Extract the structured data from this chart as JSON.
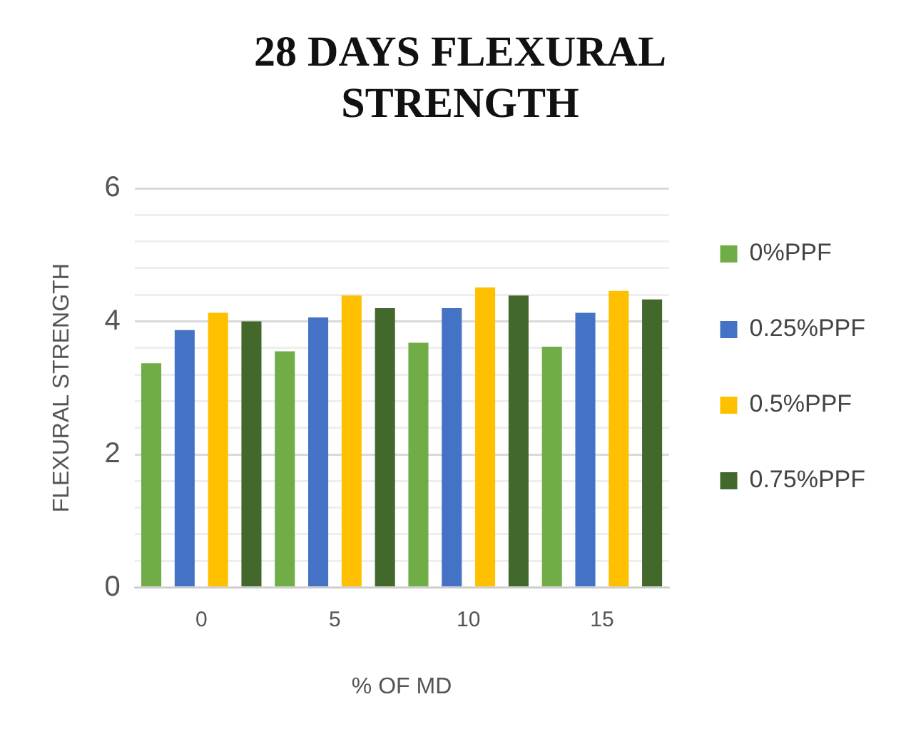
{
  "chart_data": {
    "type": "bar",
    "title": "28 DAYS FLEXURAL STRENGTH",
    "xlabel": "% OF MD",
    "ylabel": "FLEXURAL STRENGTH",
    "categories": [
      "0",
      "5",
      "10",
      "15"
    ],
    "series": [
      {
        "name": "0%PPF",
        "color": "#70ad47",
        "values": [
          3.37,
          3.55,
          3.68,
          3.62
        ]
      },
      {
        "name": "0.25%PPF",
        "color": "#4472c4",
        "values": [
          3.87,
          4.06,
          4.2,
          4.13
        ]
      },
      {
        "name": "0.5%PPF",
        "color": "#ffc000",
        "values": [
          4.13,
          4.39,
          4.51,
          4.46
        ]
      },
      {
        "name": "0.75%PPF",
        "color": "#43682b",
        "values": [
          4.0,
          4.2,
          4.39,
          4.33
        ]
      }
    ],
    "ylim": [
      0,
      6
    ],
    "yticks": [
      0,
      {
        "value": 0.4,
        "label": null
      },
      {
        "value": 0.8,
        "label": null
      },
      {
        "value": 1.2,
        "label": null
      },
      {
        "value": 1.6,
        "label": null
      },
      2,
      {
        "value": 2.4,
        "label": null
      },
      {
        "value": 2.8,
        "label": null
      },
      {
        "value": 3.2,
        "label": null
      },
      {
        "value": 3.6,
        "label": null
      },
      4,
      {
        "value": 4.4,
        "label": null
      },
      {
        "value": 4.8,
        "label": null
      },
      {
        "value": 5.2,
        "label": null
      },
      {
        "value": 5.6,
        "label": null
      },
      6
    ],
    "grid": "y",
    "legend": "right"
  }
}
